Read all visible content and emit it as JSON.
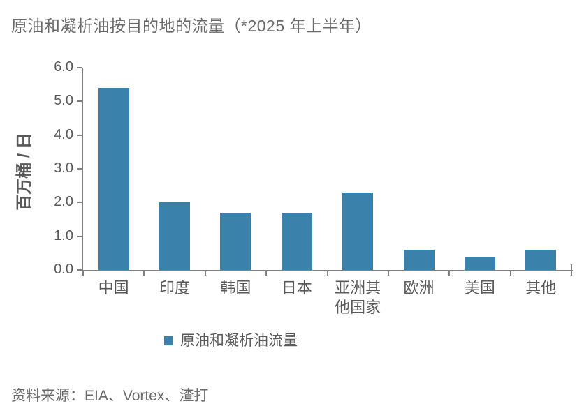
{
  "title": "原油和凝析油按目的地的流量（*2025 年上半年）",
  "source": "资料来源：EIA、Vortex、渣打",
  "colors": {
    "bar": "#3a82ac",
    "axis": "#808080",
    "label_text": "#595959",
    "title_text": "#6a6a6a"
  },
  "chart_data": {
    "type": "bar",
    "title": "原油和凝析油按目的地的流量（*2025 年上半年）",
    "ylabel": "百万桶 / 日",
    "xlabel": "",
    "categories": [
      "中国",
      "印度",
      "韩国",
      "日本",
      "亚洲其\n他国家",
      "欧洲",
      "美国",
      "其他"
    ],
    "values": [
      5.4,
      2.0,
      1.7,
      1.7,
      2.3,
      0.6,
      0.4,
      0.6
    ],
    "ylim": [
      0,
      6.0
    ],
    "ytick_step": 1.0,
    "ytick_labels": [
      "0.0",
      "1.0",
      "2.0",
      "3.0",
      "4.0",
      "5.0",
      "6.0"
    ],
    "grid": false,
    "legend": [
      "原油和凝析油流量"
    ],
    "legend_position": "bottom",
    "bar_color": "#3a82ac"
  }
}
